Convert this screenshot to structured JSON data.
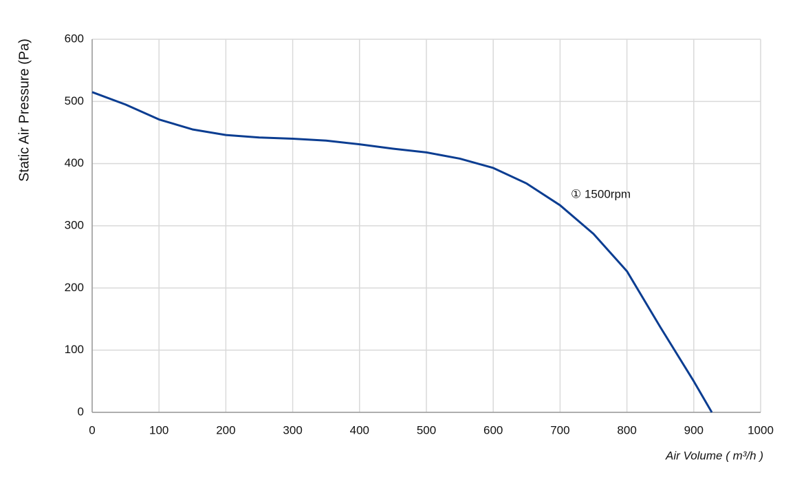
{
  "chart_data": {
    "type": "line",
    "x_label": "Air Volume ( m³/h )",
    "y_label": "Static Air Pressure  (Pa)",
    "annotation": "① 1500rpm",
    "series": [
      {
        "name": "1500rpm",
        "color": "#0b3d91",
        "x": [
          0,
          50,
          100,
          150,
          200,
          250,
          300,
          350,
          400,
          450,
          500,
          550,
          600,
          650,
          700,
          750,
          800,
          850,
          900,
          927
        ],
        "values": [
          515,
          495,
          471,
          455,
          446,
          442,
          440,
          437,
          431,
          424,
          418,
          408,
          393,
          368,
          333,
          287,
          227,
          137,
          50,
          0
        ]
      }
    ],
    "xlim": [
      0,
      1000
    ],
    "xticks": [
      0,
      100,
      200,
      300,
      400,
      500,
      600,
      700,
      800,
      900,
      1000
    ],
    "ylim": [
      0,
      600
    ],
    "yticks": [
      0,
      100,
      200,
      300,
      400,
      500,
      600
    ],
    "grid": true
  }
}
